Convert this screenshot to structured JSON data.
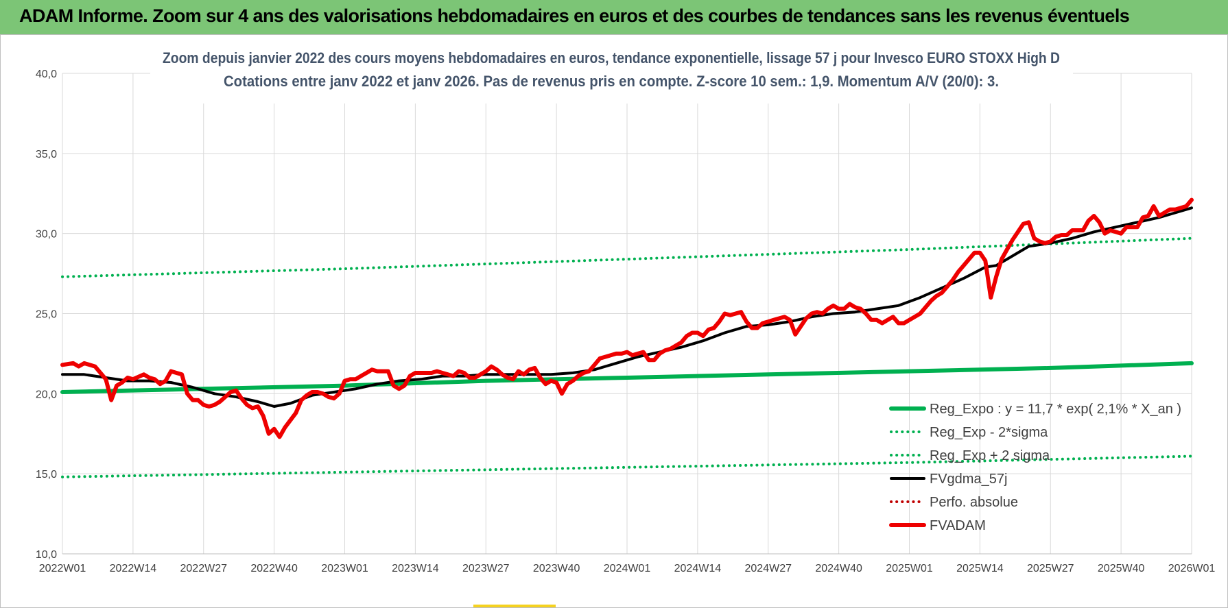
{
  "banner": {
    "title": "ADAM Informe. Zoom sur 4 ans des valorisations hebdomadaires en euros et des courbes de tendances sans les revenus éventuels"
  },
  "colors": {
    "banner_bg": "#7cc576",
    "reg_expo": "#00b050",
    "fvgdma": "#000000",
    "perfo": "#c00000",
    "fvadam": "#ee0000",
    "grid": "#d9d9d9"
  },
  "chart_data": {
    "type": "line",
    "title_line1": "Zoom depuis janvier 2022 des cours moyens hebdomadaires en euros, tendance exponentielle, lissage 57 j pour Invesco EURO STOXX High D",
    "title_line2": "Cotations entre janv 2022 et janv 2026. Pas de revenus pris en compte. Z-score 10 sem.: 1,9. Momentum A/V (20/0): 3.",
    "x_unit": "week index (2022W01 = 0)",
    "xlim": [
      0,
      208
    ],
    "ylim": [
      10,
      40
    ],
    "y_ticks": [
      {
        "value": 10,
        "label": "10,0"
      },
      {
        "value": 15,
        "label": "15,0"
      },
      {
        "value": 20,
        "label": "20,0"
      },
      {
        "value": 25,
        "label": "25,0"
      },
      {
        "value": 30,
        "label": "30,0"
      },
      {
        "value": 35,
        "label": "35,0"
      },
      {
        "value": 40,
        "label": "40,0"
      }
    ],
    "x_ticks": [
      {
        "value": 0,
        "label": "2022W01"
      },
      {
        "value": 13,
        "label": "2022W14"
      },
      {
        "value": 26,
        "label": "2022W27"
      },
      {
        "value": 39,
        "label": "2022W40"
      },
      {
        "value": 52,
        "label": "2023W01"
      },
      {
        "value": 65,
        "label": "2023W14"
      },
      {
        "value": 78,
        "label": "2023W27"
      },
      {
        "value": 91,
        "label": "2023W40"
      },
      {
        "value": 104,
        "label": "2024W01"
      },
      {
        "value": 117,
        "label": "2024W14"
      },
      {
        "value": 130,
        "label": "2024W27"
      },
      {
        "value": 143,
        "label": "2024W40"
      },
      {
        "value": 156,
        "label": "2025W01"
      },
      {
        "value": 169,
        "label": "2025W14"
      },
      {
        "value": 182,
        "label": "2025W27"
      },
      {
        "value": 195,
        "label": "2025W40"
      },
      {
        "value": 208,
        "label": "2026W01"
      }
    ],
    "grid": true,
    "legend_position": "bottom-right",
    "series": [
      {
        "name": "Reg_Expo : y = 11,7 * exp( 2,1% *  X_an )",
        "style": "solid-thick",
        "color": "#00b050",
        "points": [
          [
            0,
            20.1
          ],
          [
            26,
            20.3
          ],
          [
            52,
            20.5
          ],
          [
            78,
            20.8
          ],
          [
            104,
            21.0
          ],
          [
            130,
            21.2
          ],
          [
            156,
            21.4
          ],
          [
            182,
            21.6
          ],
          [
            208,
            21.9
          ]
        ]
      },
      {
        "name": "Reg_Exp - 2*sigma",
        "style": "dotted",
        "color": "#00b050",
        "points": [
          [
            0,
            14.8
          ],
          [
            52,
            15.1
          ],
          [
            104,
            15.4
          ],
          [
            156,
            15.7
          ],
          [
            208,
            16.1
          ]
        ]
      },
      {
        "name": "Reg_Exp + 2 sigma",
        "style": "dotted",
        "color": "#00b050",
        "points": [
          [
            0,
            27.3
          ],
          [
            52,
            27.8
          ],
          [
            104,
            28.4
          ],
          [
            156,
            29.0
          ],
          [
            208,
            29.7
          ]
        ]
      },
      {
        "name": "FVgdma_57j",
        "style": "solid",
        "color": "#000000",
        "points": [
          [
            0,
            21.2
          ],
          [
            4,
            21.2
          ],
          [
            8,
            21.0
          ],
          [
            12,
            20.8
          ],
          [
            16,
            20.8
          ],
          [
            20,
            20.7
          ],
          [
            24,
            20.4
          ],
          [
            28,
            20.0
          ],
          [
            32,
            19.8
          ],
          [
            36,
            19.5
          ],
          [
            39,
            19.2
          ],
          [
            42,
            19.4
          ],
          [
            46,
            19.9
          ],
          [
            50,
            20.1
          ],
          [
            54,
            20.3
          ],
          [
            58,
            20.6
          ],
          [
            62,
            20.8
          ],
          [
            66,
            20.9
          ],
          [
            70,
            21.1
          ],
          [
            74,
            21.1
          ],
          [
            78,
            21.2
          ],
          [
            82,
            21.2
          ],
          [
            86,
            21.2
          ],
          [
            90,
            21.2
          ],
          [
            94,
            21.3
          ],
          [
            98,
            21.5
          ],
          [
            102,
            21.9
          ],
          [
            106,
            22.3
          ],
          [
            110,
            22.6
          ],
          [
            114,
            22.9
          ],
          [
            118,
            23.3
          ],
          [
            122,
            23.8
          ],
          [
            126,
            24.2
          ],
          [
            130,
            24.3
          ],
          [
            134,
            24.5
          ],
          [
            138,
            24.8
          ],
          [
            142,
            25.0
          ],
          [
            146,
            25.1
          ],
          [
            150,
            25.3
          ],
          [
            154,
            25.5
          ],
          [
            158,
            26.0
          ],
          [
            162,
            26.6
          ],
          [
            166,
            27.2
          ],
          [
            170,
            27.9
          ],
          [
            172,
            28.0
          ],
          [
            174,
            28.4
          ],
          [
            178,
            29.2
          ],
          [
            182,
            29.4
          ],
          [
            186,
            29.7
          ],
          [
            190,
            30.1
          ],
          [
            194,
            30.4
          ],
          [
            198,
            30.7
          ],
          [
            202,
            31.0
          ],
          [
            206,
            31.4
          ],
          [
            208,
            31.6
          ]
        ]
      },
      {
        "name": "Perfo. absolue",
        "style": "dotted",
        "color": "#c00000",
        "points": []
      },
      {
        "name": "FVADAM",
        "style": "solid-thick",
        "color": "#ee0000",
        "points": [
          [
            0,
            21.8
          ],
          [
            2,
            21.9
          ],
          [
            3,
            21.7
          ],
          [
            4,
            21.9
          ],
          [
            6,
            21.7
          ],
          [
            8,
            20.9
          ],
          [
            9,
            19.6
          ],
          [
            10,
            20.5
          ],
          [
            11,
            20.7
          ],
          [
            12,
            21.0
          ],
          [
            13,
            20.9
          ],
          [
            15,
            21.2
          ],
          [
            16,
            21.0
          ],
          [
            17,
            20.9
          ],
          [
            18,
            20.6
          ],
          [
            19,
            20.8
          ],
          [
            20,
            21.4
          ],
          [
            21,
            21.3
          ],
          [
            22,
            21.2
          ],
          [
            23,
            20.0
          ],
          [
            24,
            19.6
          ],
          [
            25,
            19.6
          ],
          [
            26,
            19.3
          ],
          [
            27,
            19.2
          ],
          [
            28,
            19.3
          ],
          [
            29,
            19.5
          ],
          [
            30,
            19.8
          ],
          [
            31,
            20.1
          ],
          [
            32,
            20.2
          ],
          [
            33,
            19.7
          ],
          [
            34,
            19.3
          ],
          [
            35,
            19.1
          ],
          [
            36,
            19.2
          ],
          [
            37,
            18.6
          ],
          [
            38,
            17.5
          ],
          [
            39,
            17.8
          ],
          [
            40,
            17.3
          ],
          [
            41,
            17.9
          ],
          [
            43,
            18.8
          ],
          [
            44,
            19.6
          ],
          [
            45,
            19.9
          ],
          [
            46,
            20.1
          ],
          [
            47,
            20.1
          ],
          [
            48,
            20.0
          ],
          [
            49,
            19.8
          ],
          [
            50,
            19.7
          ],
          [
            51,
            20.0
          ],
          [
            52,
            20.8
          ],
          [
            53,
            20.9
          ],
          [
            54,
            20.9
          ],
          [
            55,
            21.1
          ],
          [
            56,
            21.3
          ],
          [
            57,
            21.5
          ],
          [
            58,
            21.4
          ],
          [
            59,
            21.4
          ],
          [
            60,
            21.4
          ],
          [
            61,
            20.5
          ],
          [
            62,
            20.3
          ],
          [
            63,
            20.5
          ],
          [
            64,
            21.1
          ],
          [
            65,
            21.3
          ],
          [
            66,
            21.3
          ],
          [
            67,
            21.3
          ],
          [
            68,
            21.3
          ],
          [
            69,
            21.4
          ],
          [
            70,
            21.3
          ],
          [
            71,
            21.2
          ],
          [
            72,
            21.1
          ],
          [
            73,
            21.4
          ],
          [
            74,
            21.3
          ],
          [
            75,
            21.0
          ],
          [
            76,
            21.0
          ],
          [
            77,
            21.2
          ],
          [
            78,
            21.4
          ],
          [
            79,
            21.7
          ],
          [
            80,
            21.5
          ],
          [
            81,
            21.2
          ],
          [
            82,
            21.0
          ],
          [
            83,
            20.9
          ],
          [
            84,
            21.4
          ],
          [
            85,
            21.2
          ],
          [
            86,
            21.5
          ],
          [
            87,
            21.6
          ],
          [
            88,
            21.0
          ],
          [
            89,
            20.6
          ],
          [
            90,
            20.8
          ],
          [
            91,
            20.7
          ],
          [
            92,
            20.0
          ],
          [
            93,
            20.6
          ],
          [
            94,
            20.8
          ],
          [
            95,
            21.1
          ],
          [
            96,
            21.3
          ],
          [
            97,
            21.4
          ],
          [
            98,
            21.8
          ],
          [
            99,
            22.2
          ],
          [
            100,
            22.3
          ],
          [
            101,
            22.4
          ],
          [
            102,
            22.5
          ],
          [
            103,
            22.5
          ],
          [
            104,
            22.6
          ],
          [
            105,
            22.4
          ],
          [
            106,
            22.5
          ],
          [
            107,
            22.6
          ],
          [
            108,
            22.1
          ],
          [
            109,
            22.1
          ],
          [
            110,
            22.5
          ],
          [
            111,
            22.7
          ],
          [
            112,
            22.8
          ],
          [
            113,
            23.0
          ],
          [
            114,
            23.2
          ],
          [
            115,
            23.6
          ],
          [
            116,
            23.8
          ],
          [
            117,
            23.8
          ],
          [
            118,
            23.6
          ],
          [
            119,
            24.0
          ],
          [
            120,
            24.1
          ],
          [
            121,
            24.5
          ],
          [
            122,
            25.0
          ],
          [
            123,
            24.9
          ],
          [
            124,
            25.0
          ],
          [
            125,
            25.1
          ],
          [
            126,
            24.5
          ],
          [
            127,
            24.1
          ],
          [
            128,
            24.1
          ],
          [
            129,
            24.4
          ],
          [
            130,
            24.5
          ],
          [
            131,
            24.6
          ],
          [
            132,
            24.7
          ],
          [
            133,
            24.8
          ],
          [
            134,
            24.6
          ],
          [
            135,
            23.7
          ],
          [
            136,
            24.2
          ],
          [
            137,
            24.7
          ],
          [
            138,
            25.0
          ],
          [
            139,
            25.1
          ],
          [
            140,
            25.0
          ],
          [
            141,
            25.3
          ],
          [
            142,
            25.5
          ],
          [
            143,
            25.3
          ],
          [
            144,
            25.3
          ],
          [
            145,
            25.6
          ],
          [
            146,
            25.4
          ],
          [
            147,
            25.3
          ],
          [
            148,
            25.0
          ],
          [
            149,
            24.6
          ],
          [
            150,
            24.6
          ],
          [
            151,
            24.4
          ],
          [
            152,
            24.6
          ],
          [
            153,
            24.8
          ],
          [
            154,
            24.4
          ],
          [
            155,
            24.4
          ],
          [
            156,
            24.6
          ],
          [
            157,
            24.8
          ],
          [
            158,
            25.0
          ],
          [
            159,
            25.4
          ],
          [
            160,
            25.8
          ],
          [
            161,
            26.1
          ],
          [
            162,
            26.3
          ],
          [
            163,
            26.7
          ],
          [
            164,
            27.1
          ],
          [
            165,
            27.6
          ],
          [
            166,
            28.0
          ],
          [
            167,
            28.4
          ],
          [
            168,
            28.8
          ],
          [
            169,
            28.8
          ],
          [
            170,
            28.3
          ],
          [
            171,
            26.0
          ],
          [
            172,
            27.3
          ],
          [
            173,
            28.4
          ],
          [
            174,
            29.0
          ],
          [
            175,
            29.6
          ],
          [
            176,
            30.1
          ],
          [
            177,
            30.6
          ],
          [
            178,
            30.7
          ],
          [
            179,
            29.7
          ],
          [
            180,
            29.5
          ],
          [
            181,
            29.4
          ],
          [
            182,
            29.5
          ],
          [
            183,
            29.8
          ],
          [
            184,
            29.9
          ],
          [
            185,
            29.9
          ],
          [
            186,
            30.2
          ],
          [
            187,
            30.2
          ],
          [
            188,
            30.2
          ],
          [
            189,
            30.8
          ],
          [
            190,
            31.1
          ],
          [
            191,
            30.7
          ],
          [
            192,
            30.0
          ],
          [
            193,
            30.2
          ],
          [
            194,
            30.1
          ],
          [
            195,
            30.0
          ],
          [
            196,
            30.4
          ],
          [
            197,
            30.4
          ],
          [
            198,
            30.4
          ],
          [
            199,
            31.0
          ],
          [
            200,
            31.1
          ],
          [
            201,
            31.7
          ],
          [
            202,
            31.1
          ],
          [
            203,
            31.3
          ],
          [
            204,
            31.5
          ],
          [
            205,
            31.5
          ],
          [
            206,
            31.6
          ],
          [
            207,
            31.7
          ],
          [
            208,
            32.1
          ]
        ]
      }
    ]
  }
}
